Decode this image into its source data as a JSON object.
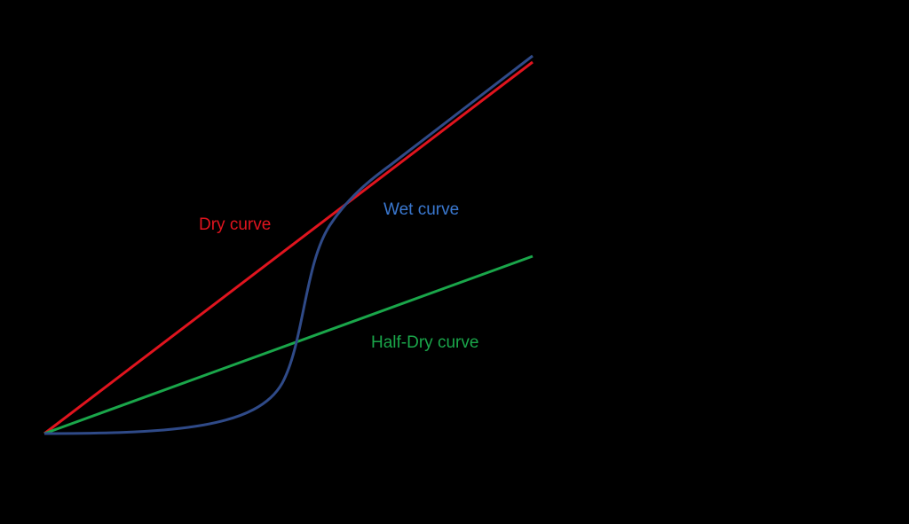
{
  "labels": {
    "dry": "Dry curve",
    "wet": "Wet curve",
    "half_dry": "Half-Dry curve"
  }
}
